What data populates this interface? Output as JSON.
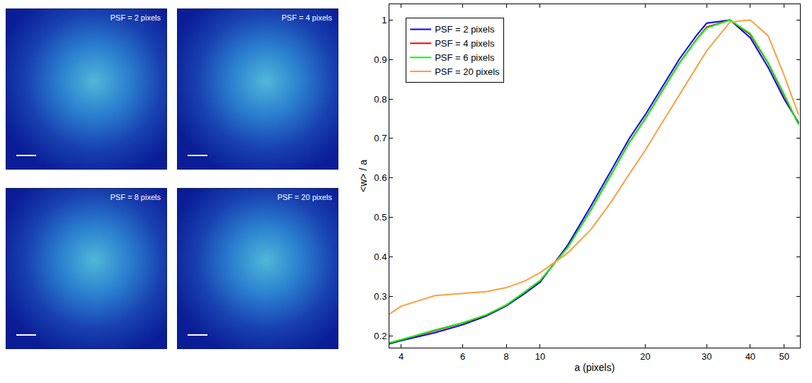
{
  "chart_data": [
    {
      "type": "image",
      "title": "PSF = 2 pixels"
    },
    {
      "type": "image",
      "title": "PSF = 4 pixels"
    },
    {
      "type": "image",
      "title": "PSF = 8 pixels"
    },
    {
      "type": "image",
      "title": "PSF = 20 pixels"
    },
    {
      "type": "line",
      "x_label": "a (pixels)",
      "y_label": "<w> / a",
      "x": [
        3.7,
        4,
        5,
        6,
        7,
        8,
        9,
        10,
        12,
        14,
        16,
        18,
        20,
        22,
        25,
        28,
        30,
        35,
        40,
        45,
        50,
        55
      ],
      "series": [
        {
          "name": "PSF = 2 pixels",
          "color": "#0000ff",
          "values": [
            0.18,
            0.188,
            0.208,
            0.228,
            0.25,
            0.276,
            0.306,
            0.336,
            0.43,
            0.53,
            0.62,
            0.7,
            0.76,
            0.82,
            0.9,
            0.96,
            0.992,
            1.0,
            0.955,
            0.88,
            0.8,
            0.74
          ]
        },
        {
          "name": "PSF = 4 pixels",
          "color": "#ff0000",
          "values": [
            0.182,
            0.19,
            0.214,
            0.232,
            0.252,
            0.278,
            0.31,
            0.34,
            0.425,
            0.52,
            0.61,
            0.69,
            0.75,
            0.81,
            0.89,
            0.95,
            0.982,
            1.0,
            0.963,
            0.89,
            0.81,
            0.736
          ]
        },
        {
          "name": "PSF = 6 pixels",
          "color": "#00ff00",
          "values": [
            0.182,
            0.19,
            0.215,
            0.233,
            0.253,
            0.278,
            0.31,
            0.34,
            0.424,
            0.519,
            0.609,
            0.689,
            0.749,
            0.809,
            0.889,
            0.949,
            0.98,
            1.0,
            0.966,
            0.892,
            0.812,
            0.735
          ]
        },
        {
          "name": "PSF = 20 pixels",
          "color": "#f9a03f",
          "values": [
            0.255,
            0.275,
            0.302,
            0.308,
            0.312,
            0.322,
            0.338,
            0.36,
            0.41,
            0.47,
            0.54,
            0.61,
            0.67,
            0.73,
            0.81,
            0.88,
            0.922,
            0.995,
            1.0,
            0.96,
            0.86,
            0.76
          ]
        }
      ],
      "xlim": [
        3.7,
        55.5
      ],
      "ylim": [
        0.17,
        1.04
      ],
      "xticks": [
        4,
        6,
        8,
        10,
        20,
        30,
        40,
        50
      ],
      "yticks": [
        0.2,
        0.3,
        0.4,
        0.5,
        0.6,
        0.7,
        0.8,
        0.9,
        1
      ],
      "log": "x",
      "grid": false,
      "legend": "upper left"
    }
  ]
}
